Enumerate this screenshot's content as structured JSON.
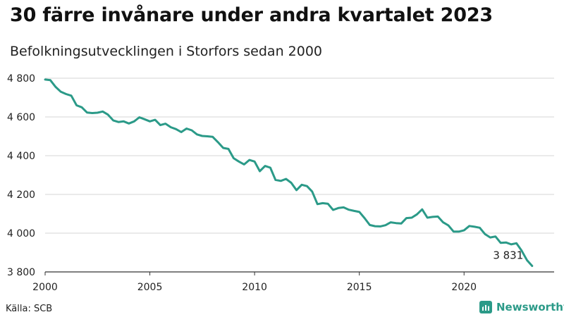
{
  "title": "30 färre invånare under andra kvartalet 2023",
  "subtitle": "Befolkningsutvecklingen i Storfors sedan 2000",
  "source": "Källa: SCB",
  "brand": {
    "name": "Newsworthy",
    "icon": "bar-chart-icon",
    "color": "#2b9a88"
  },
  "chart_data": {
    "type": "line",
    "title": "30 färre invånare under andra kvartalet 2023",
    "subtitle": "Befolkningsutvecklingen i Storfors sedan 2000",
    "xlabel": "",
    "ylabel": "",
    "xlim": [
      2000,
      2024.3
    ],
    "ylim": [
      3800,
      4800
    ],
    "grid": true,
    "line_color": "#2b9a88",
    "x_ticks": [
      2000,
      2005,
      2010,
      2015,
      2020
    ],
    "x_tick_labels": [
      "2000",
      "2005",
      "2010",
      "2015",
      "2020"
    ],
    "y_ticks": [
      3800,
      4000,
      4200,
      4400,
      4600,
      4800
    ],
    "y_tick_labels": [
      "3 800",
      "4 000",
      "4 200",
      "4 400",
      "4 600",
      "4 800"
    ],
    "end_label": "3 831",
    "series": [
      {
        "values": [
          [
            2000.0,
            4793
          ],
          [
            2000.25,
            4790
          ],
          [
            2000.5,
            4755
          ],
          [
            2000.75,
            4730
          ],
          [
            2001.0,
            4718
          ],
          [
            2001.25,
            4710
          ],
          [
            2001.5,
            4660
          ],
          [
            2001.75,
            4650
          ],
          [
            2002.0,
            4623
          ],
          [
            2002.25,
            4620
          ],
          [
            2002.5,
            4622
          ],
          [
            2002.75,
            4628
          ],
          [
            2003.0,
            4612
          ],
          [
            2003.25,
            4582
          ],
          [
            2003.5,
            4574
          ],
          [
            2003.75,
            4577
          ],
          [
            2004.0,
            4566
          ],
          [
            2004.25,
            4577
          ],
          [
            2004.5,
            4598
          ],
          [
            2004.75,
            4588
          ],
          [
            2005.0,
            4577
          ],
          [
            2005.25,
            4585
          ],
          [
            2005.5,
            4558
          ],
          [
            2005.75,
            4565
          ],
          [
            2006.0,
            4547
          ],
          [
            2006.25,
            4537
          ],
          [
            2006.5,
            4522
          ],
          [
            2006.75,
            4540
          ],
          [
            2007.0,
            4531
          ],
          [
            2007.25,
            4510
          ],
          [
            2007.5,
            4502
          ],
          [
            2007.75,
            4500
          ],
          [
            2008.0,
            4497
          ],
          [
            2008.25,
            4470
          ],
          [
            2008.5,
            4440
          ],
          [
            2008.75,
            4435
          ],
          [
            2009.0,
            4387
          ],
          [
            2009.25,
            4370
          ],
          [
            2009.5,
            4355
          ],
          [
            2009.75,
            4378
          ],
          [
            2010.0,
            4370
          ],
          [
            2010.25,
            4320
          ],
          [
            2010.5,
            4347
          ],
          [
            2010.75,
            4338
          ],
          [
            2011.0,
            4275
          ],
          [
            2011.25,
            4270
          ],
          [
            2011.5,
            4280
          ],
          [
            2011.75,
            4260
          ],
          [
            2012.0,
            4222
          ],
          [
            2012.25,
            4250
          ],
          [
            2012.5,
            4243
          ],
          [
            2012.75,
            4215
          ],
          [
            2013.0,
            4150
          ],
          [
            2013.25,
            4155
          ],
          [
            2013.5,
            4152
          ],
          [
            2013.75,
            4120
          ],
          [
            2014.0,
            4130
          ],
          [
            2014.25,
            4133
          ],
          [
            2014.5,
            4121
          ],
          [
            2014.75,
            4115
          ],
          [
            2015.0,
            4110
          ],
          [
            2015.25,
            4078
          ],
          [
            2015.5,
            4042
          ],
          [
            2015.75,
            4036
          ],
          [
            2016.0,
            4035
          ],
          [
            2016.25,
            4041
          ],
          [
            2016.5,
            4056
          ],
          [
            2016.75,
            4052
          ],
          [
            2017.0,
            4050
          ],
          [
            2017.25,
            4078
          ],
          [
            2017.5,
            4080
          ],
          [
            2017.75,
            4097
          ],
          [
            2018.0,
            4123
          ],
          [
            2018.25,
            4080
          ],
          [
            2018.5,
            4084
          ],
          [
            2018.75,
            4086
          ],
          [
            2019.0,
            4056
          ],
          [
            2019.25,
            4040
          ],
          [
            2019.5,
            4008
          ],
          [
            2019.75,
            4008
          ],
          [
            2020.0,
            4015
          ],
          [
            2020.25,
            4037
          ],
          [
            2020.5,
            4033
          ],
          [
            2020.75,
            4028
          ],
          [
            2021.0,
            3995
          ],
          [
            2021.25,
            3978
          ],
          [
            2021.5,
            3983
          ],
          [
            2021.75,
            3950
          ],
          [
            2022.0,
            3952
          ],
          [
            2022.25,
            3942
          ],
          [
            2022.5,
            3948
          ],
          [
            2022.75,
            3910
          ],
          [
            2023.0,
            3861
          ],
          [
            2023.25,
            3831
          ]
        ]
      }
    ]
  }
}
